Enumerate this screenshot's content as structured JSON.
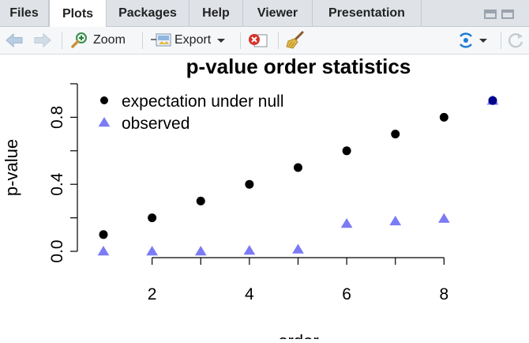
{
  "tabs": [
    {
      "label": "Files",
      "active": false
    },
    {
      "label": "Plots",
      "active": true
    },
    {
      "label": "Packages",
      "active": false
    },
    {
      "label": "Help",
      "active": false
    },
    {
      "label": "Viewer",
      "active": false
    },
    {
      "label": "Presentation",
      "active": false
    }
  ],
  "toolbar": {
    "zoom_label": "Zoom",
    "export_label": "Export",
    "icons": [
      "back-arrow-icon",
      "forward-arrow-icon",
      "zoom-icon",
      "export-icon",
      "remove-plot-icon",
      "broom-icon",
      "publish-icon",
      "refresh-icon"
    ]
  },
  "colors": {
    "expected": "#000000",
    "observed": "#7b7bf5",
    "last_point": "#00008b"
  },
  "chart_data": {
    "type": "scatter",
    "title": "p-value order statistics",
    "xlabel": "order",
    "ylabel": "p-value",
    "xlim": [
      1,
      9
    ],
    "ylim": [
      0,
      1
    ],
    "x_ticks": [
      2,
      4,
      6,
      8
    ],
    "y_ticks": [
      0.0,
      0.4,
      0.8
    ],
    "y_tick_labels": [
      "0.0",
      "0.4",
      "0.8"
    ],
    "grid": false,
    "legend_position": "top-left",
    "series": [
      {
        "name": "expectation under null",
        "marker": "circle",
        "x": [
          1,
          2,
          3,
          4,
          5,
          6,
          7,
          8,
          9
        ],
        "y": [
          0.1,
          0.2,
          0.3,
          0.4,
          0.5,
          0.6,
          0.7,
          0.8,
          0.9
        ]
      },
      {
        "name": "observed",
        "marker": "triangle",
        "x": [
          1,
          2,
          3,
          4,
          5,
          6,
          7,
          8,
          9
        ],
        "y": [
          0.0,
          0.0,
          0.0,
          0.005,
          0.012,
          0.165,
          0.18,
          0.195,
          0.9
        ]
      }
    ]
  }
}
